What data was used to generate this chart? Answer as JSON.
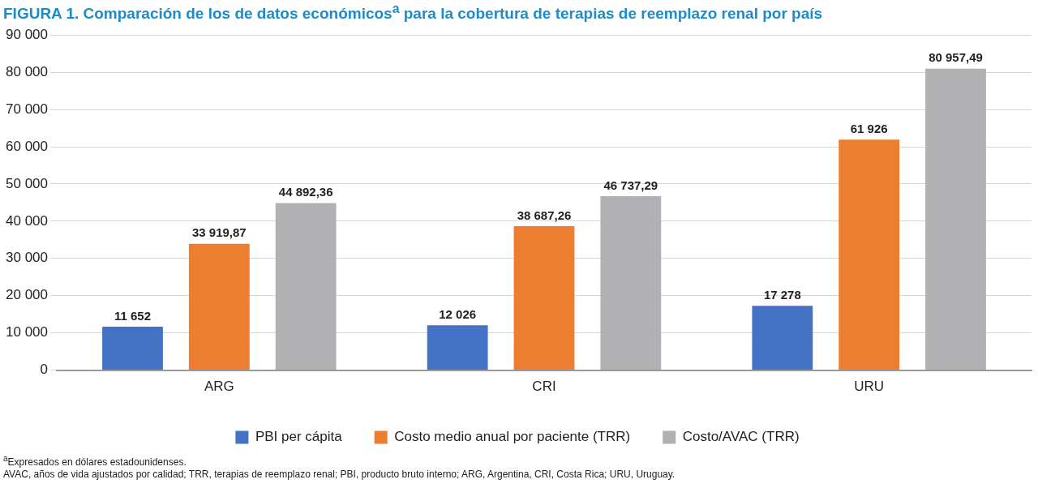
{
  "chart_data": {
    "type": "bar",
    "title": "FIGURA 1. Comparación de los de datos económicos$^{a}$ para la cobertura de terapias de reemplazo renal por país",
    "categories": [
      "ARG",
      "CRI",
      "URU"
    ],
    "series": [
      {
        "name": "PBI per cápita",
        "color": "#4472c4",
        "values": [
          11652,
          12026,
          17278
        ],
        "value_labels": [
          "11 652",
          "12 026",
          "17 278"
        ]
      },
      {
        "name": "Costo medio anual por paciente (TRR)",
        "color": "#ed7d31",
        "values": [
          33919.87,
          38687.26,
          61926
        ],
        "value_labels": [
          "33 919,87",
          "38 687,26",
          "61 926"
        ]
      },
      {
        "name": "Costo/AVAC (TRR)",
        "color": "#b1b1b4",
        "values": [
          44892.36,
          46737.29,
          80957.49
        ],
        "value_labels": [
          "44 892,36",
          "46 737,29",
          "80 957,49"
        ]
      }
    ],
    "ylim": [
      0,
      90000
    ],
    "yticks": [
      {
        "value": 0,
        "label": "0"
      },
      {
        "value": 10000,
        "label": "10 000"
      },
      {
        "value": 20000,
        "label": "20 000"
      },
      {
        "value": 30000,
        "label": "30 000"
      },
      {
        "value": 40000,
        "label": "40 000"
      },
      {
        "value": 50000,
        "label": "50 000"
      },
      {
        "value": 60000,
        "label": "60 000"
      },
      {
        "value": 70000,
        "label": "70 000"
      },
      {
        "value": 80000,
        "label": "80 000"
      },
      {
        "value": 90000,
        "label": "90 000"
      }
    ],
    "grid": "y",
    "legend": "bottom",
    "annotations": [
      "$^{a}$Expresados en dólares estadounidenses.",
      "AVAC, años de vida ajustados por calidad; TRR, terapias de reemplazo renal; PBI, producto bruto interno; ARG, Argentina, CRI, Costa Rica; URU, Uruguay."
    ]
  }
}
